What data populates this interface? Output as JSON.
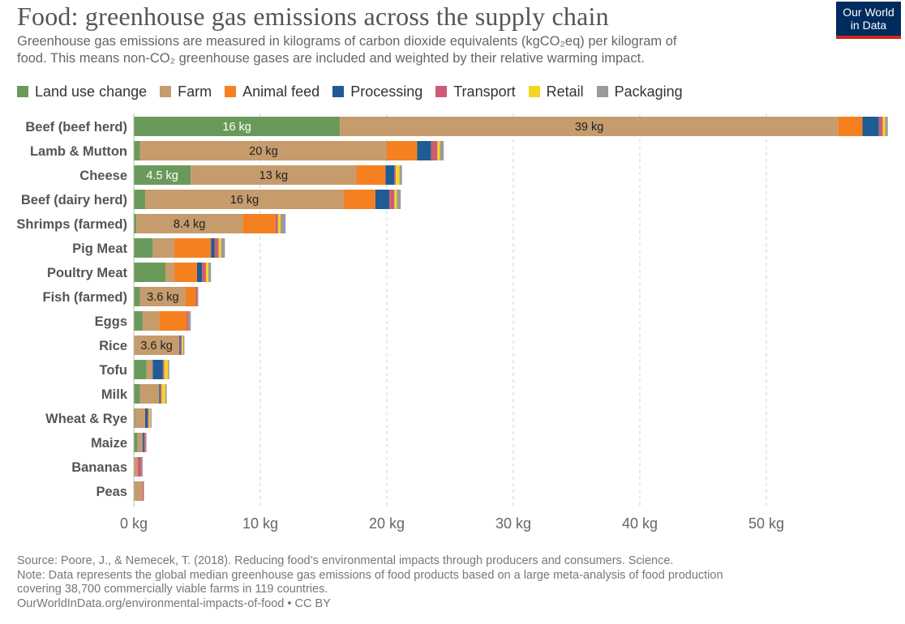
{
  "title": "Food: greenhouse gas emissions across the supply chain",
  "subtitle_line1": "Greenhouse gas emissions are measured in kilograms of carbon dioxide equivalents (kgCO₂eq) per kilogram of",
  "subtitle_line2": "food. This means non-CO₂ greenhouse gases are included and weighted by their relative warming impact.",
  "logo": {
    "line1": "Our World",
    "line2": "in Data"
  },
  "footer": {
    "source": "Source: Poore, J., & Nemecek, T. (2018). Reducing food’s environmental impacts through producers and consumers. Science.",
    "note_line1": "Note: Data represents the global median greenhouse gas emissions of food products based on a large meta-analysis of food production",
    "note_line2": "covering 38,700 commercially viable farms in 119 countries.",
    "url": "OurWorldInData.org/environmental-impacts-of-food • CC BY"
  },
  "chart_data": {
    "type": "bar",
    "orientation": "horizontal",
    "stacked": true,
    "title": "Food: greenhouse gas emissions across the supply chain",
    "xlabel": "",
    "ylabel": "",
    "xlim": [
      0,
      60
    ],
    "x_ticks": [
      0,
      10,
      20,
      30,
      40,
      50
    ],
    "x_tick_labels": [
      "0 kg",
      "10 kg",
      "20 kg",
      "30 kg",
      "40 kg",
      "50 kg"
    ],
    "grid": true,
    "legend_position": "top-left",
    "categories": [
      "Beef (beef herd)",
      "Lamb & Mutton",
      "Cheese",
      "Beef (dairy herd)",
      "Shrimps (farmed)",
      "Pig Meat",
      "Poultry Meat",
      "Fish (farmed)",
      "Eggs",
      "Rice",
      "Tofu",
      "Milk",
      "Wheat & Rye",
      "Maize",
      "Bananas",
      "Peas"
    ],
    "series": [
      {
        "name": "Land use change",
        "color": "#6a9a5b",
        "values": [
          16.3,
          0.5,
          4.5,
          0.9,
          0.2,
          1.5,
          2.5,
          0.5,
          0.7,
          0.0,
          1.0,
          0.5,
          0.1,
          0.3,
          0.0,
          0.0
        ]
      },
      {
        "name": "Farm",
        "color": "#c69c6d",
        "values": [
          39.4,
          19.5,
          13.1,
          15.7,
          8.4,
          1.7,
          0.7,
          3.6,
          1.3,
          3.6,
          0.5,
          1.5,
          0.8,
          0.4,
          0.3,
          0.7
        ]
      },
      {
        "name": "Animal feed",
        "color": "#f5801f",
        "values": [
          1.9,
          2.4,
          2.3,
          2.5,
          2.6,
          2.9,
          1.8,
          0.8,
          2.2,
          0.0,
          0.0,
          0.0,
          0.0,
          0.0,
          0.0,
          0.0
        ]
      },
      {
        "name": "Processing",
        "color": "#1f5c93",
        "values": [
          1.3,
          1.1,
          0.7,
          1.1,
          0.0,
          0.3,
          0.4,
          0.0,
          0.0,
          0.1,
          0.8,
          0.1,
          0.2,
          0.1,
          0.0,
          0.0
        ]
      },
      {
        "name": "Transport",
        "color": "#cf5c75",
        "values": [
          0.3,
          0.5,
          0.1,
          0.4,
          0.2,
          0.3,
          0.3,
          0.1,
          0.1,
          0.1,
          0.1,
          0.1,
          0.1,
          0.1,
          0.3,
          0.1
        ]
      },
      {
        "name": "Retail",
        "color": "#f2d525",
        "values": [
          0.2,
          0.2,
          0.3,
          0.2,
          0.2,
          0.2,
          0.2,
          0.0,
          0.0,
          0.1,
          0.3,
          0.3,
          0.1,
          0.0,
          0.0,
          0.0
        ]
      },
      {
        "name": "Packaging",
        "color": "#9b9b9b",
        "values": [
          0.2,
          0.3,
          0.2,
          0.3,
          0.4,
          0.3,
          0.2,
          0.1,
          0.2,
          0.1,
          0.1,
          0.1,
          0.1,
          0.1,
          0.1,
          0.0
        ]
      }
    ],
    "annotations": [
      {
        "category": "Beef (beef herd)",
        "series": "Land use change",
        "label": "16 kg"
      },
      {
        "category": "Beef (beef herd)",
        "series": "Farm",
        "label": "39 kg"
      },
      {
        "category": "Lamb & Mutton",
        "series": "Farm",
        "label": "20 kg"
      },
      {
        "category": "Cheese",
        "series": "Land use change",
        "label": "4.5 kg"
      },
      {
        "category": "Cheese",
        "series": "Farm",
        "label": "13 kg"
      },
      {
        "category": "Beef (dairy herd)",
        "series": "Farm",
        "label": "16 kg"
      },
      {
        "category": "Shrimps (farmed)",
        "series": "Farm",
        "label": "8.4 kg"
      },
      {
        "category": "Fish (farmed)",
        "series": "Farm",
        "label": "3.6 kg"
      },
      {
        "category": "Rice",
        "series": "Farm",
        "label": "3.6 kg"
      }
    ]
  }
}
